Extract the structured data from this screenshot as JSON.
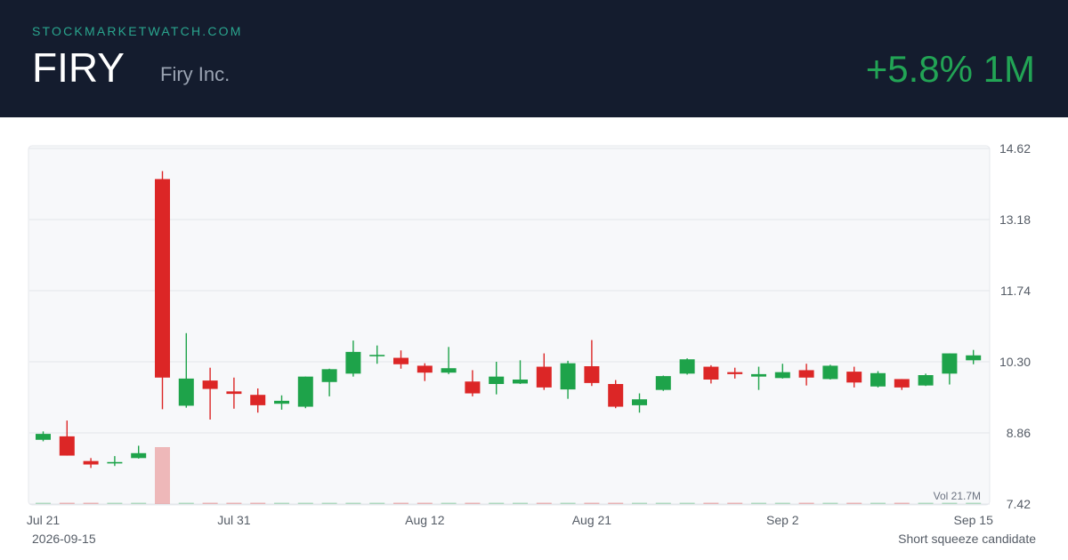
{
  "header": {
    "site": "STOCKMARKETWATCH.COM",
    "ticker": "FIRY",
    "company": "Firy Inc.",
    "change": "+5.8% 1M"
  },
  "footer": {
    "date": "2026-09-15",
    "note": "Short squeeze candidate"
  },
  "colors": {
    "up": "#1ea34a",
    "down": "#dc2626",
    "header_bg": "#141c2e",
    "change": "#22a455"
  },
  "chart_data": {
    "type": "candlestick",
    "ylim": [
      7.42,
      14.62
    ],
    "y_ticks": [
      "14.62",
      "13.18",
      "11.74",
      "10.30",
      "8.86",
      "7.42"
    ],
    "x_ticks": [
      {
        "label": "Jul 21",
        "index": 0
      },
      {
        "label": "Jul 31",
        "index": 8
      },
      {
        "label": "Aug 12",
        "index": 16
      },
      {
        "label": "Aug 21",
        "index": 23
      },
      {
        "label": "Sep 2",
        "index": 31
      },
      {
        "label": "Sep 15",
        "index": 39
      }
    ],
    "volume_label": "Vol 21.7M",
    "volume_max": 21.7,
    "candles": [
      {
        "o": 8.72,
        "h": 8.89,
        "l": 8.69,
        "c": 8.84,
        "v": 0.05
      },
      {
        "o": 8.79,
        "h": 9.11,
        "l": 8.4,
        "c": 8.4,
        "v": 0.05
      },
      {
        "o": 8.29,
        "h": 8.35,
        "l": 8.15,
        "c": 8.22,
        "v": 0.05
      },
      {
        "o": 8.27,
        "h": 8.39,
        "l": 8.19,
        "c": 8.27,
        "v": 0.05
      },
      {
        "o": 8.35,
        "h": 8.6,
        "l": 8.34,
        "c": 8.45,
        "v": 0.05
      },
      {
        "o": 14.0,
        "h": 14.16,
        "l": 9.34,
        "c": 9.98,
        "v": 21.7
      },
      {
        "o": 9.41,
        "h": 10.88,
        "l": 9.37,
        "c": 9.96,
        "v": 0.3
      },
      {
        "o": 9.92,
        "h": 10.18,
        "l": 9.13,
        "c": 9.75,
        "v": 0.2
      },
      {
        "o": 9.7,
        "h": 9.98,
        "l": 9.35,
        "c": 9.65,
        "v": 0.15
      },
      {
        "o": 9.63,
        "h": 9.76,
        "l": 9.27,
        "c": 9.42,
        "v": 0.15
      },
      {
        "o": 9.45,
        "h": 9.62,
        "l": 9.33,
        "c": 9.51,
        "v": 0.1
      },
      {
        "o": 9.39,
        "h": 10.0,
        "l": 9.36,
        "c": 10.0,
        "v": 0.1
      },
      {
        "o": 9.89,
        "h": 10.16,
        "l": 9.6,
        "c": 10.15,
        "v": 0.1
      },
      {
        "o": 10.06,
        "h": 10.73,
        "l": 10.0,
        "c": 10.5,
        "v": 0.1
      },
      {
        "o": 10.44,
        "h": 10.63,
        "l": 10.26,
        "c": 10.44,
        "v": 0.1
      },
      {
        "o": 10.38,
        "h": 10.53,
        "l": 10.16,
        "c": 10.25,
        "v": 0.05
      },
      {
        "o": 10.22,
        "h": 10.27,
        "l": 9.91,
        "c": 10.08,
        "v": 0.05
      },
      {
        "o": 10.08,
        "h": 10.6,
        "l": 10.05,
        "c": 10.17,
        "v": 0.05
      },
      {
        "o": 9.9,
        "h": 10.13,
        "l": 9.6,
        "c": 9.66,
        "v": 0.05
      },
      {
        "o": 9.85,
        "h": 10.3,
        "l": 9.64,
        "c": 10.0,
        "v": 0.05
      },
      {
        "o": 9.86,
        "h": 10.33,
        "l": 9.85,
        "c": 9.94,
        "v": 0.05
      },
      {
        "o": 10.2,
        "h": 10.47,
        "l": 9.73,
        "c": 9.78,
        "v": 0.05
      },
      {
        "o": 9.74,
        "h": 10.32,
        "l": 9.55,
        "c": 10.27,
        "v": 0.05
      },
      {
        "o": 10.21,
        "h": 10.74,
        "l": 9.81,
        "c": 9.87,
        "v": 0.05
      },
      {
        "o": 9.85,
        "h": 9.93,
        "l": 9.36,
        "c": 9.39,
        "v": 0.05
      },
      {
        "o": 9.42,
        "h": 9.66,
        "l": 9.27,
        "c": 9.54,
        "v": 0.05
      },
      {
        "o": 9.73,
        "h": 10.02,
        "l": 9.71,
        "c": 10.01,
        "v": 0.05
      },
      {
        "o": 10.06,
        "h": 10.37,
        "l": 10.04,
        "c": 10.35,
        "v": 0.05
      },
      {
        "o": 10.2,
        "h": 10.23,
        "l": 9.86,
        "c": 9.94,
        "v": 0.05
      },
      {
        "o": 10.09,
        "h": 10.18,
        "l": 9.96,
        "c": 10.05,
        "v": 0.05
      },
      {
        "o": 10.0,
        "h": 10.2,
        "l": 9.73,
        "c": 10.05,
        "v": 0.05
      },
      {
        "o": 9.97,
        "h": 10.26,
        "l": 9.96,
        "c": 10.09,
        "v": 0.05
      },
      {
        "o": 10.13,
        "h": 10.26,
        "l": 9.82,
        "c": 9.98,
        "v": 0.05
      },
      {
        "o": 9.95,
        "h": 10.24,
        "l": 9.94,
        "c": 10.22,
        "v": 0.05
      },
      {
        "o": 10.1,
        "h": 10.2,
        "l": 9.78,
        "c": 9.88,
        "v": 0.05
      },
      {
        "o": 9.8,
        "h": 10.11,
        "l": 9.78,
        "c": 10.07,
        "v": 0.05
      },
      {
        "o": 9.95,
        "h": 9.95,
        "l": 9.73,
        "c": 9.78,
        "v": 0.05
      },
      {
        "o": 9.82,
        "h": 10.06,
        "l": 9.81,
        "c": 10.03,
        "v": 0.05
      },
      {
        "o": 10.06,
        "h": 10.47,
        "l": 9.84,
        "c": 10.47,
        "v": 0.05
      },
      {
        "o": 10.33,
        "h": 10.54,
        "l": 10.25,
        "c": 10.43,
        "v": 0.05
      }
    ]
  }
}
